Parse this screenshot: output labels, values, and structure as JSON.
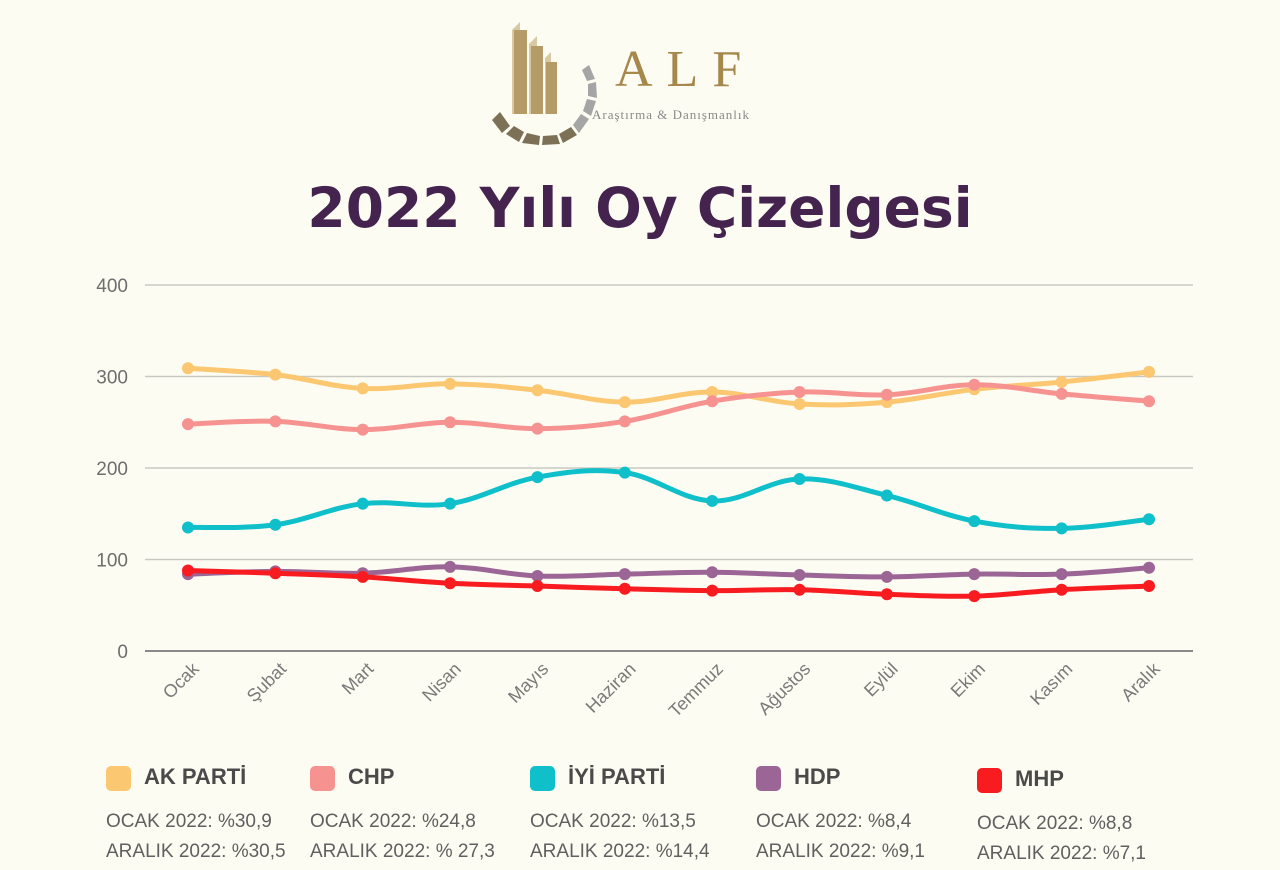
{
  "brand": {
    "name": "ALF",
    "subtitle": "Araştırma & Danışmanlık"
  },
  "title": "2022 Yılı Oy Çizelgesi",
  "chart_data": {
    "type": "line",
    "categories": [
      "Ocak",
      "Şubat",
      "Mart",
      "Nisan",
      "Mayıs",
      "Haziran",
      "Temmuz",
      "Ağustos",
      "Eylül",
      "Ekim",
      "Kasım",
      "Aralık"
    ],
    "ylim": [
      0,
      400
    ],
    "yticks": [
      0,
      100,
      200,
      300,
      400
    ],
    "grid": true,
    "series": [
      {
        "name": "AK PARTİ",
        "color": "#fcc771",
        "values": [
          309,
          302,
          287,
          292,
          285,
          272,
          283,
          270,
          272,
          286,
          294,
          305
        ]
      },
      {
        "name": "CHP",
        "color": "#f69391",
        "values": [
          248,
          251,
          242,
          250,
          243,
          251,
          273,
          283,
          280,
          291,
          281,
          273
        ]
      },
      {
        "name": "İYİ PARTİ",
        "color": "#0fbfc9",
        "values": [
          135,
          138,
          161,
          161,
          190,
          195,
          164,
          188,
          170,
          142,
          134,
          144
        ]
      },
      {
        "name": "HDP",
        "color": "#9b6595",
        "values": [
          84,
          87,
          85,
          92,
          82,
          84,
          86,
          83,
          81,
          84,
          84,
          91
        ]
      },
      {
        "name": "MHP",
        "color": "#f81c20",
        "values": [
          88,
          85,
          81,
          74,
          71,
          68,
          66,
          67,
          62,
          60,
          67,
          71
        ]
      }
    ]
  },
  "legend": [
    {
      "name": "AK PARTİ",
      "color": "#fcc771",
      "line1": "OCAK 2022: %30,9",
      "line2": "ARALIK 2022: %30,5"
    },
    {
      "name": "CHP",
      "color": "#f69391",
      "line1": "OCAK 2022: %24,8",
      "line2": "ARALIK 2022: % 27,3"
    },
    {
      "name": "İYİ PARTİ",
      "color": "#0fbfc9",
      "line1": "OCAK 2022: %13,5",
      "line2": "ARALIK 2022: %14,4"
    },
    {
      "name": "HDP",
      "color": "#9b6595",
      "line1": "OCAK 2022: %8,4",
      "line2": "ARALIK 2022: %9,1"
    },
    {
      "name": "MHP",
      "color": "#f81c20",
      "line1": "OCAK 2022: %8,8",
      "line2": "ARALIK 2022: %7,1"
    }
  ]
}
